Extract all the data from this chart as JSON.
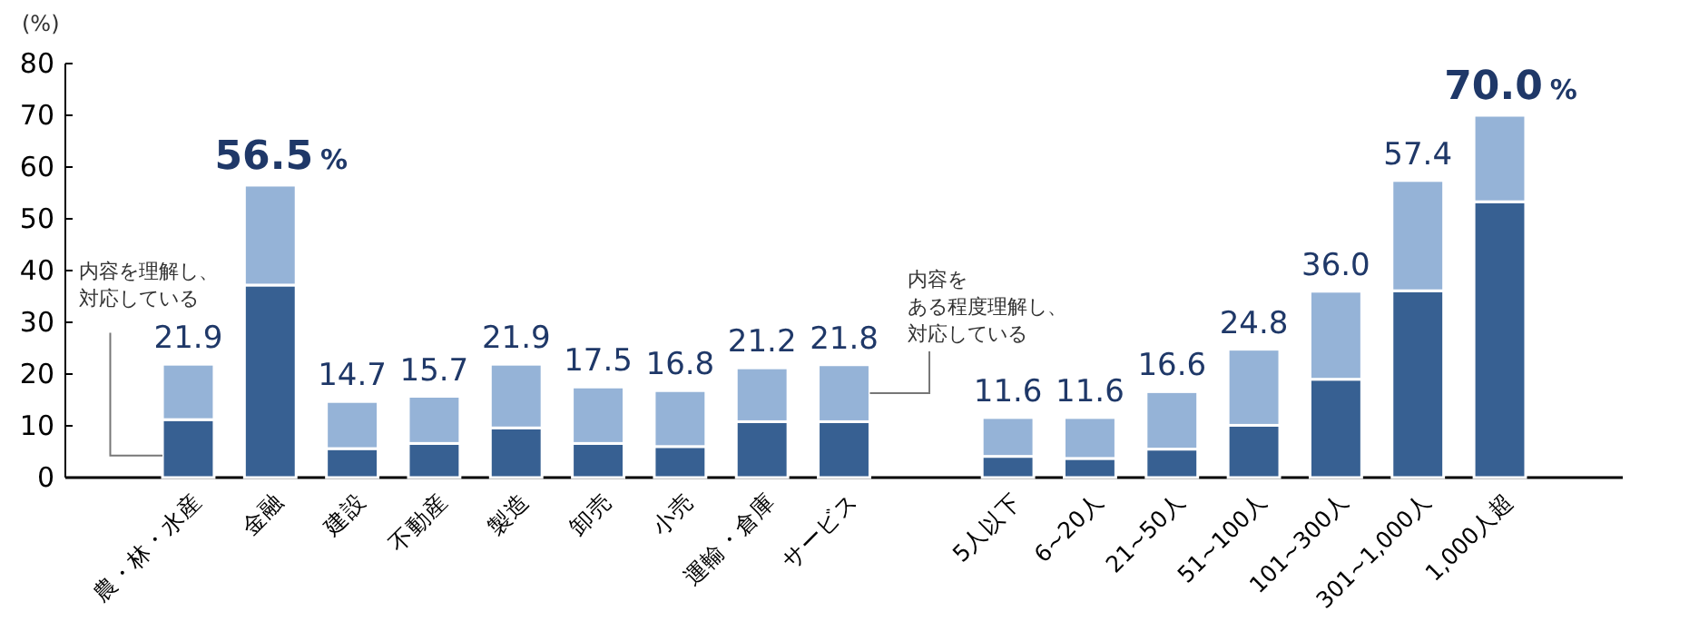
{
  "chart_data": {
    "type": "bar",
    "stacked": true,
    "ylabel": "(%)",
    "categories": [
      "農・林・水産",
      "金融",
      "建設",
      "不動産",
      "製造",
      "卸売",
      "小売",
      "運輸・倉庫",
      "サービス",
      null,
      "5人以下",
      "6~20人",
      "21~50人",
      "51~100人",
      "101~300人",
      "301~1,000人",
      "1,000人超"
    ],
    "series": [
      {
        "name": "内容を理解し、対応している",
        "color": "#376092",
        "values": [
          11.2,
          37.2,
          5.6,
          6.6,
          9.6,
          6.6,
          6.0,
          10.8,
          10.8,
          null,
          4.1,
          3.7,
          5.5,
          10.1,
          19.0,
          36.1,
          53.3
        ]
      },
      {
        "name": "内容をある程度理解し、対応している",
        "color": "#95b3d7",
        "values": [
          10.7,
          19.3,
          9.1,
          9.1,
          12.3,
          10.9,
          10.8,
          10.4,
          11.0,
          null,
          7.5,
          7.9,
          11.1,
          14.7,
          17.0,
          21.3,
          16.7
        ]
      }
    ],
    "totals": [
      "21.9",
      "56.5%",
      "14.7",
      "15.7",
      "21.9",
      "17.5",
      "16.8",
      "21.2",
      "21.8",
      null,
      "11.6",
      "11.6",
      "16.6",
      "24.8",
      "36.0",
      "57.4",
      "70.0%"
    ],
    "ylim": [
      0,
      80
    ],
    "yticks": [
      0,
      10,
      20,
      30,
      40,
      50,
      60,
      70,
      80
    ]
  }
}
